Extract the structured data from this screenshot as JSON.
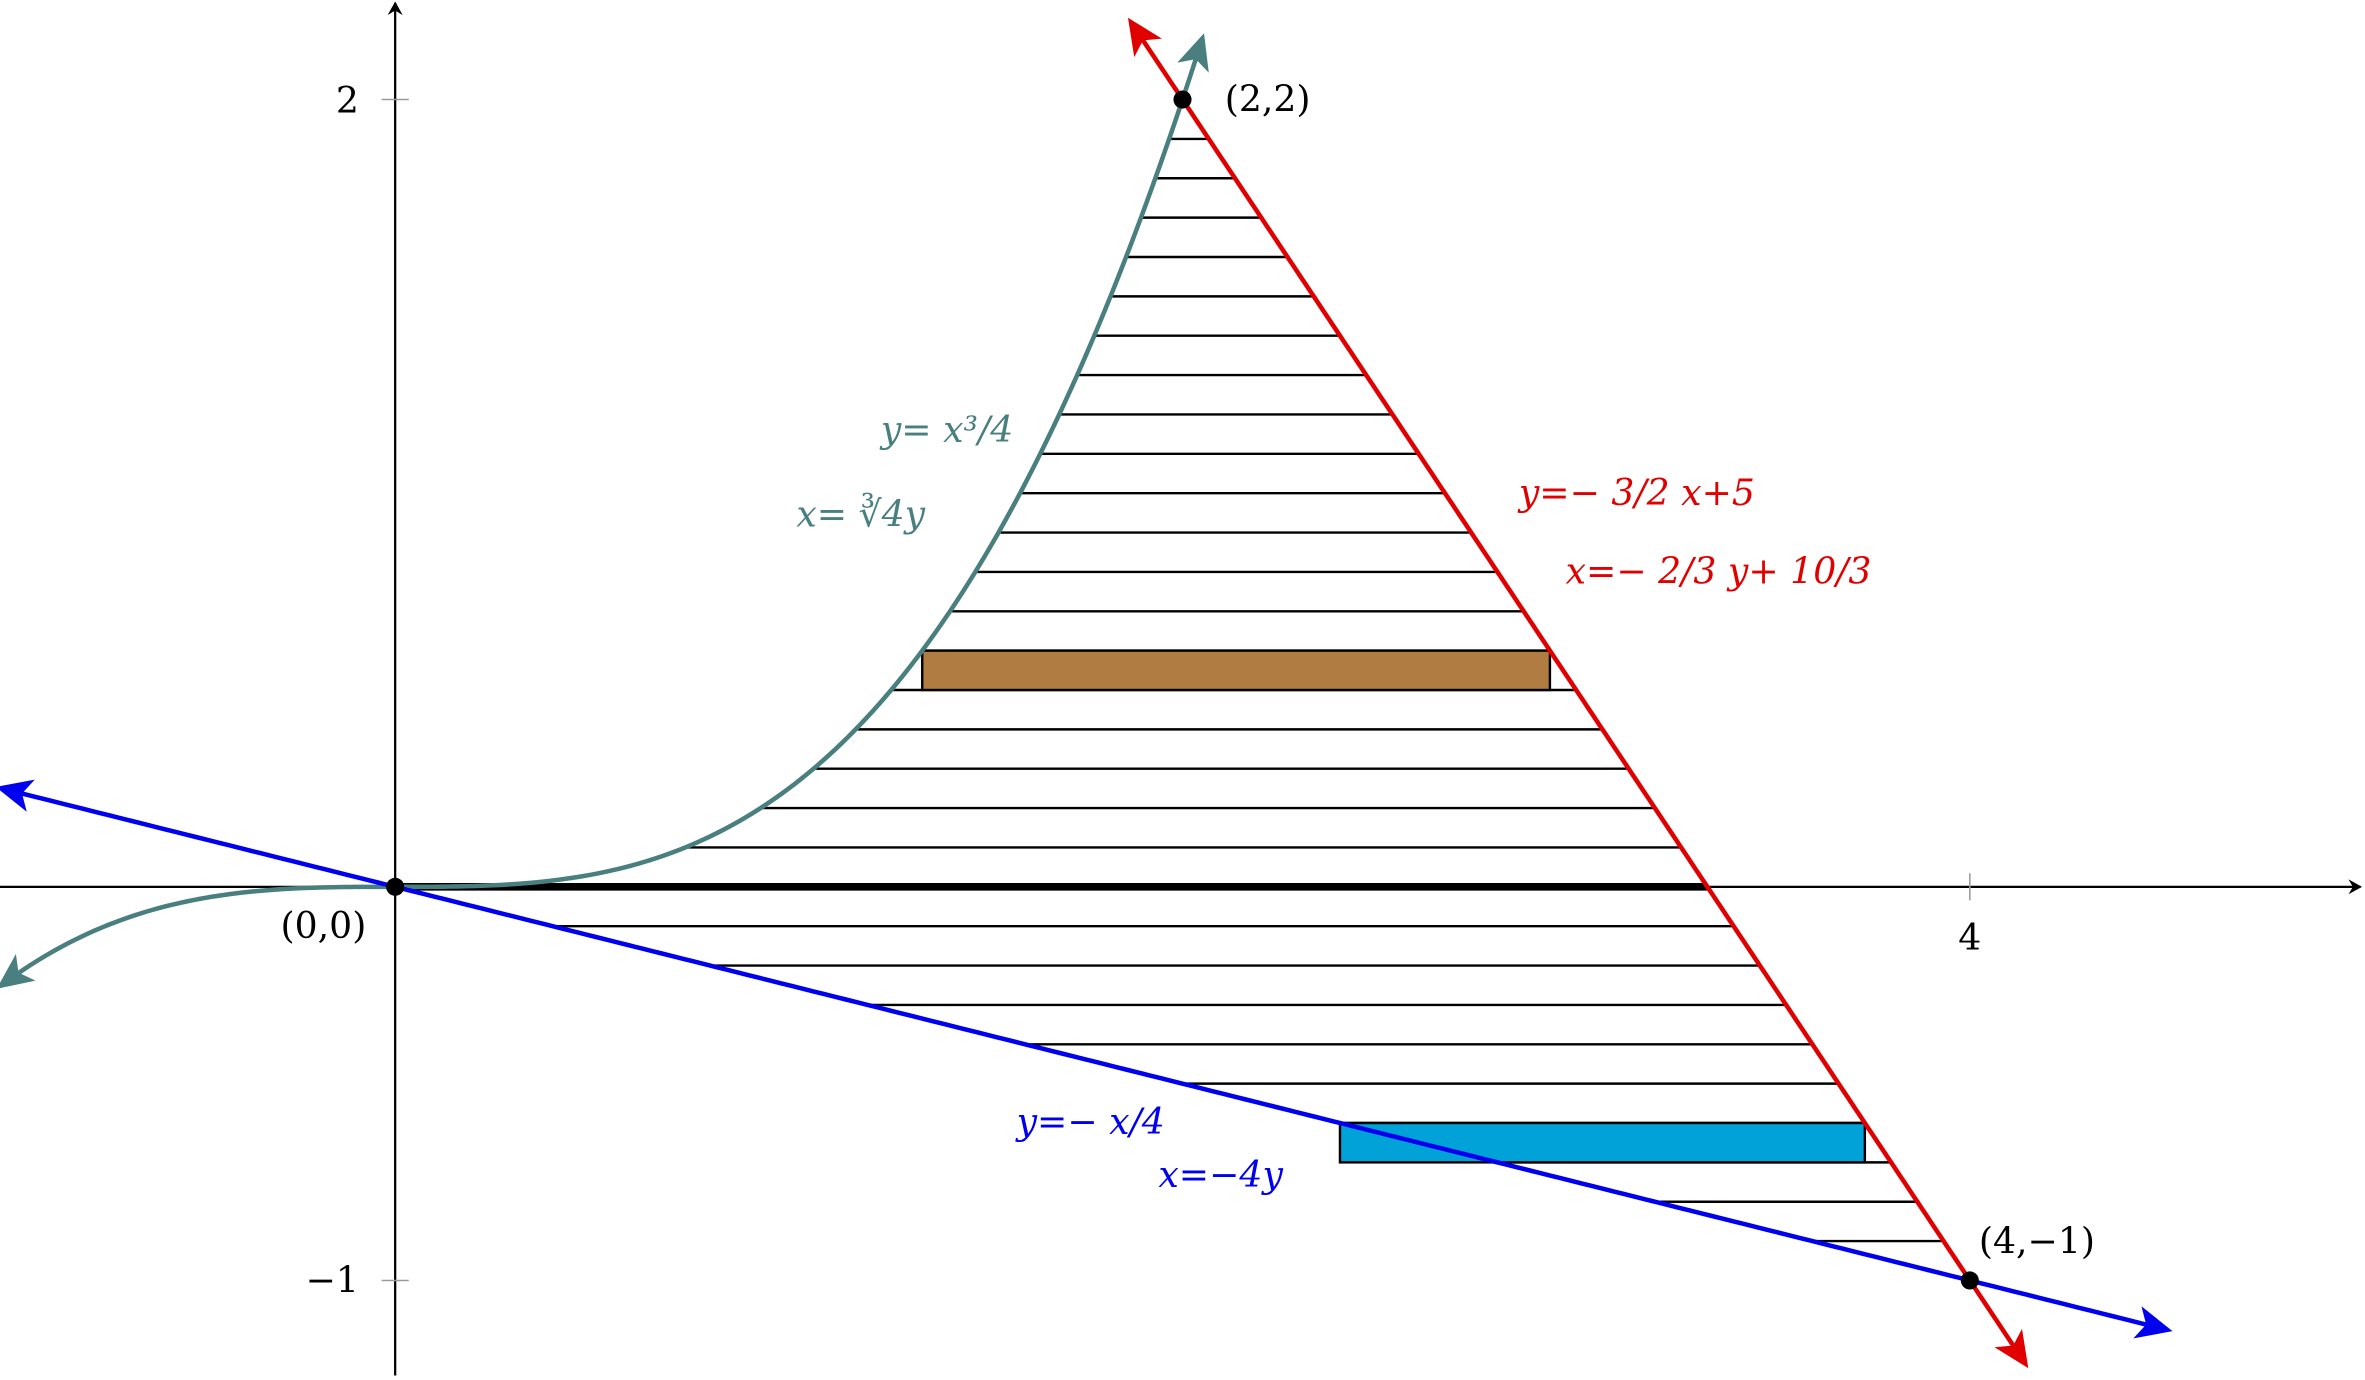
{
  "chart_data": {
    "type": "line",
    "grid": false,
    "xlim": [
      -1,
      5
    ],
    "ylim": [
      -1.25,
      2.25
    ],
    "x_ticks": [
      "4"
    ],
    "y_ticks": [
      "2",
      "−1"
    ],
    "series": [
      {
        "name": "y=x^3/4",
        "label_y": "y= x³/4",
        "label_x": "x= ∛4y",
        "color": "#4a7f7f",
        "x_range": [
          -1,
          2.05
        ]
      },
      {
        "name": "y=-3/2 x+5",
        "label_y": "y=− 3/2 x+5",
        "label_x": "x=− 2/3 y+ 10/3",
        "color": "#e00000",
        "x_range": [
          1.87,
          4.14
        ]
      },
      {
        "name": "y=-x/4",
        "label_y": "y=− x/4",
        "label_x": "x=−4y",
        "color": "#0000ee",
        "x_range": [
          -1,
          4.5
        ]
      }
    ],
    "points": [
      {
        "x": 2,
        "y": 2,
        "label": "(2,2)"
      },
      {
        "x": 0,
        "y": 0,
        "label": "(0,0)"
      },
      {
        "x": 4,
        "y": -1,
        "label": "(4,−1)"
      }
    ],
    "hatch_step": 0.1,
    "hatch_y_range": [
      -0.9,
      1.9
    ],
    "strips": [
      {
        "y_bottom": 0.5,
        "y_top": 0.6,
        "color": "#b07c42"
      },
      {
        "y_bottom": -0.7,
        "y_top": -0.6,
        "color": "#00a2d8"
      }
    ]
  }
}
